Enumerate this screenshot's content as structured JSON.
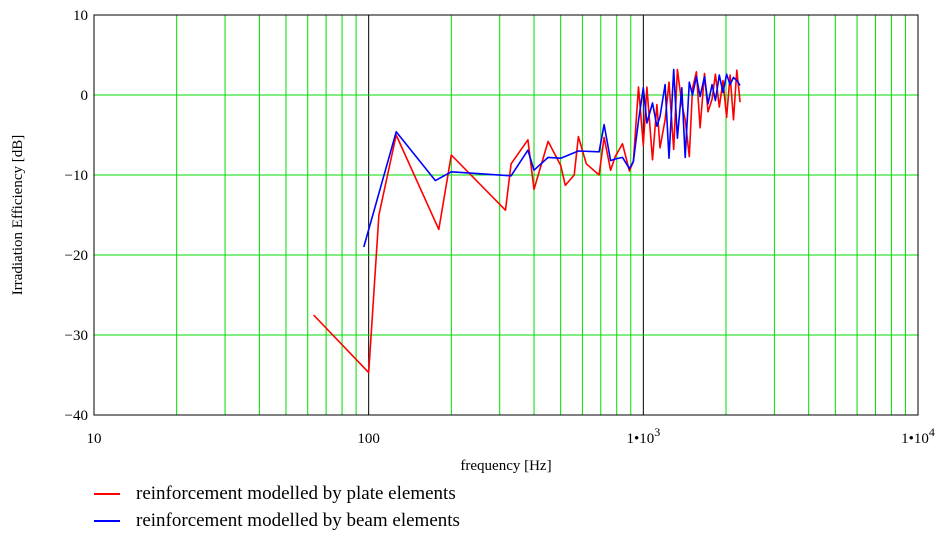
{
  "chart_data": {
    "type": "line",
    "xscale": "log",
    "xlim": [
      10,
      10000
    ],
    "ylim": [
      -40,
      10
    ],
    "xlabel": "frequency [Hz]",
    "ylabel": "Irradiation Efficiency [dB]",
    "grid": true,
    "grid_color": "#00dd00",
    "xticks": [
      {
        "value": 10,
        "label": "10"
      },
      {
        "value": 100,
        "label": "100"
      },
      {
        "value": 1000,
        "label": "1•",
        "exp": "3"
      },
      {
        "value": 10000,
        "label": "1•",
        "exp": "4"
      }
    ],
    "yticks": [
      {
        "value": 10,
        "label": "10"
      },
      {
        "value": 0,
        "label": "0"
      },
      {
        "value": -10,
        "label": "−10"
      },
      {
        "value": -20,
        "label": "−20"
      },
      {
        "value": -30,
        "label": "−30"
      },
      {
        "value": -40,
        "label": "−40"
      }
    ],
    "series": [
      {
        "name": "reinforcement modelled by plate elements",
        "color": "#ff0000",
        "x": [
          63,
          100,
          109,
          126,
          180,
          200,
          315,
          330,
          380,
          400,
          450,
          500,
          520,
          560,
          580,
          620,
          690,
          720,
          760,
          790,
          840,
          890,
          920,
          960,
          1000,
          1030,
          1080,
          1120,
          1150,
          1200,
          1240,
          1290,
          1330,
          1380,
          1420,
          1470,
          1510,
          1560,
          1610,
          1670,
          1720,
          1780,
          1830,
          1890,
          1950,
          2010,
          2070,
          2130,
          2190,
          2250
        ],
        "y": [
          -27.5,
          -34.7,
          -15,
          -5,
          -16.8,
          -7.5,
          -14.4,
          -8.6,
          -5.6,
          -11.8,
          -5.8,
          -8.8,
          -11.3,
          -10,
          -5.2,
          -8.6,
          -10,
          -5.3,
          -9.4,
          -7.7,
          -6.1,
          -9.5,
          -8.3,
          1,
          -6.3,
          1,
          -8.1,
          -1.2,
          -6.6,
          -3.1,
          1.6,
          -6.8,
          3.2,
          -1.1,
          -3.1,
          -7.7,
          0.8,
          2.9,
          -4.1,
          2.7,
          -2.1,
          -0.5,
          2.6,
          -1.5,
          1.8,
          -2.8,
          2.5,
          -3.1,
          3.1,
          -0.9
        ]
      },
      {
        "name": "reinforcement modelled by beam elements",
        "color": "#0000ff",
        "x": [
          96,
          126,
          175,
          200,
          330,
          380,
          400,
          450,
          500,
          580,
          690,
          720,
          760,
          790,
          840,
          890,
          920,
          960,
          1000,
          1030,
          1080,
          1120,
          1150,
          1200,
          1240,
          1290,
          1330,
          1380,
          1420,
          1470,
          1510,
          1560,
          1610,
          1670,
          1720,
          1780,
          1830,
          1890,
          1950,
          2010,
          2070,
          2130,
          2190,
          2250
        ],
        "y": [
          -19,
          -4.6,
          -10.7,
          -9.6,
          -10.1,
          -6.9,
          -9.4,
          -7.8,
          -7.9,
          -7,
          -7.1,
          -3.7,
          -8.2,
          -8,
          -7.8,
          -9.2,
          -8.3,
          -3.2,
          0.9,
          -3.5,
          -1,
          -3.9,
          -2.7,
          1.3,
          -7.9,
          3.2,
          -5.4,
          0.9,
          -7.8,
          1.6,
          0,
          2.3,
          -0.2,
          2.3,
          -1.1,
          1.3,
          -0.7,
          2.5,
          0.3,
          2.6,
          1.3,
          2.2,
          1.8,
          1.2
        ]
      }
    ]
  }
}
